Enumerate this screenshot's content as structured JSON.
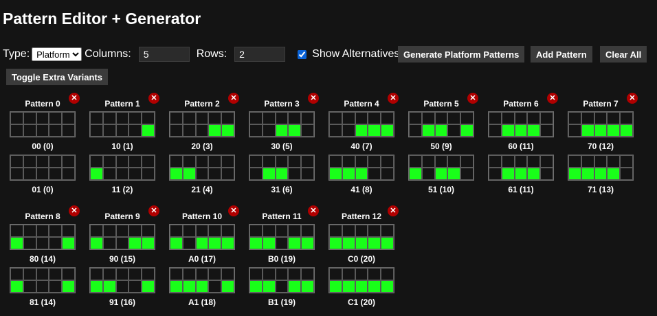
{
  "title": "Pattern Editor + Generator",
  "controls": {
    "type_label": "Type:",
    "type_value": "Platform",
    "columns_label": "Columns:",
    "columns_value": "5",
    "rows_label": "Rows:",
    "rows_value": "2",
    "show_alternatives_label": "Show Alternatives",
    "show_alternatives_checked": true,
    "generate_label": "Generate Platform Patterns",
    "add_label": "Add Pattern",
    "clear_label": "Clear All",
    "toggle_label": "Toggle Extra Variants"
  },
  "delete_icon": "close-icon",
  "colors": {
    "on": "#19ff19",
    "off": "#141414",
    "delete": "#b00000"
  },
  "patterns": [
    {
      "name": "Pattern 0",
      "variants": [
        {
          "label": "00 (0)",
          "cells": [
            0,
            0,
            0,
            0,
            0,
            0,
            0,
            0,
            0,
            0
          ]
        },
        {
          "label": "01 (0)",
          "cells": [
            0,
            0,
            0,
            0,
            0,
            0,
            0,
            0,
            0,
            0
          ]
        }
      ]
    },
    {
      "name": "Pattern 1",
      "variants": [
        {
          "label": "10 (1)",
          "cells": [
            0,
            0,
            0,
            0,
            0,
            0,
            0,
            0,
            0,
            1
          ]
        },
        {
          "label": "11 (2)",
          "cells": [
            0,
            0,
            0,
            0,
            0,
            1,
            0,
            0,
            0,
            0
          ]
        }
      ]
    },
    {
      "name": "Pattern 2",
      "variants": [
        {
          "label": "20 (3)",
          "cells": [
            0,
            0,
            0,
            0,
            0,
            0,
            0,
            0,
            1,
            1
          ]
        },
        {
          "label": "21 (4)",
          "cells": [
            0,
            0,
            0,
            0,
            0,
            1,
            1,
            0,
            0,
            0
          ]
        }
      ]
    },
    {
      "name": "Pattern 3",
      "variants": [
        {
          "label": "30 (5)",
          "cells": [
            0,
            0,
            0,
            0,
            0,
            0,
            0,
            1,
            1,
            0
          ]
        },
        {
          "label": "31 (6)",
          "cells": [
            0,
            0,
            0,
            0,
            0,
            0,
            1,
            1,
            0,
            0
          ]
        }
      ]
    },
    {
      "name": "Pattern 4",
      "variants": [
        {
          "label": "40 (7)",
          "cells": [
            0,
            0,
            0,
            0,
            0,
            0,
            0,
            1,
            1,
            1
          ]
        },
        {
          "label": "41 (8)",
          "cells": [
            0,
            0,
            0,
            0,
            0,
            1,
            1,
            1,
            0,
            0
          ]
        }
      ]
    },
    {
      "name": "Pattern 5",
      "variants": [
        {
          "label": "50 (9)",
          "cells": [
            0,
            0,
            0,
            0,
            0,
            0,
            1,
            1,
            0,
            1
          ]
        },
        {
          "label": "51 (10)",
          "cells": [
            0,
            0,
            0,
            0,
            0,
            1,
            0,
            1,
            1,
            0
          ]
        }
      ]
    },
    {
      "name": "Pattern 6",
      "variants": [
        {
          "label": "60 (11)",
          "cells": [
            0,
            0,
            0,
            0,
            0,
            0,
            1,
            1,
            1,
            0
          ]
        },
        {
          "label": "61 (11)",
          "cells": [
            0,
            0,
            0,
            0,
            0,
            0,
            1,
            1,
            1,
            0
          ]
        }
      ]
    },
    {
      "name": "Pattern 7",
      "variants": [
        {
          "label": "70 (12)",
          "cells": [
            0,
            0,
            0,
            0,
            0,
            0,
            1,
            1,
            1,
            1
          ]
        },
        {
          "label": "71 (13)",
          "cells": [
            0,
            0,
            0,
            0,
            0,
            1,
            1,
            1,
            1,
            0
          ]
        }
      ]
    },
    {
      "name": "Pattern 8",
      "variants": [
        {
          "label": "80 (14)",
          "cells": [
            0,
            0,
            0,
            0,
            0,
            1,
            0,
            0,
            0,
            1
          ]
        },
        {
          "label": "81 (14)",
          "cells": [
            0,
            0,
            0,
            0,
            0,
            1,
            0,
            0,
            0,
            1
          ]
        }
      ]
    },
    {
      "name": "Pattern 9",
      "variants": [
        {
          "label": "90 (15)",
          "cells": [
            0,
            0,
            0,
            0,
            0,
            1,
            0,
            0,
            1,
            1
          ]
        },
        {
          "label": "91 (16)",
          "cells": [
            0,
            0,
            0,
            0,
            0,
            1,
            1,
            0,
            0,
            1
          ]
        }
      ]
    },
    {
      "name": "Pattern 10",
      "variants": [
        {
          "label": "A0 (17)",
          "cells": [
            0,
            0,
            0,
            0,
            0,
            1,
            0,
            1,
            1,
            1
          ]
        },
        {
          "label": "A1 (18)",
          "cells": [
            0,
            0,
            0,
            0,
            0,
            1,
            1,
            1,
            0,
            1
          ]
        }
      ]
    },
    {
      "name": "Pattern 11",
      "variants": [
        {
          "label": "B0 (19)",
          "cells": [
            0,
            0,
            0,
            0,
            0,
            1,
            1,
            0,
            1,
            1
          ]
        },
        {
          "label": "B1 (19)",
          "cells": [
            0,
            0,
            0,
            0,
            0,
            1,
            1,
            0,
            1,
            1
          ]
        }
      ]
    },
    {
      "name": "Pattern 12",
      "variants": [
        {
          "label": "C0 (20)",
          "cells": [
            0,
            0,
            0,
            0,
            0,
            1,
            1,
            1,
            1,
            1
          ]
        },
        {
          "label": "C1 (20)",
          "cells": [
            0,
            0,
            0,
            0,
            0,
            1,
            1,
            1,
            1,
            1
          ]
        }
      ]
    }
  ]
}
